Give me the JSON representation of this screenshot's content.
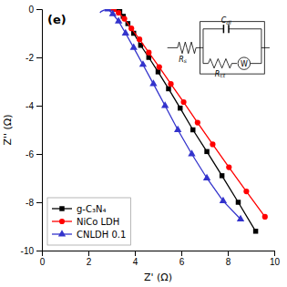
{
  "chart_data": {
    "type": "line",
    "title": "(e)",
    "x_label": "Z' (Ω)",
    "y_label": "Z'' (Ω)",
    "xlim": [
      0,
      10
    ],
    "ylim": [
      -10,
      0
    ],
    "xticks": [
      0,
      2,
      4,
      6,
      8,
      10
    ],
    "yticks": [
      0,
      -2,
      -4,
      -6,
      -8,
      -10
    ],
    "legend": "lower left",
    "series": [
      {
        "name": "g-C₃N₄",
        "color": "black",
        "marker": "square",
        "tail_x": [
          3.0,
          3.05,
          3.1,
          3.15,
          3.2
        ],
        "tail_values": [
          -0.05,
          -0.04,
          -0.03,
          -0.01,
          0.0
        ],
        "x": [
          3.2,
          3.35,
          3.5,
          3.7,
          3.95,
          4.25,
          4.6,
          5.0,
          5.45,
          5.95,
          6.5,
          7.1,
          7.75,
          8.45,
          9.2
        ],
        "values": [
          0.0,
          -0.1,
          -0.3,
          -0.6,
          -1.0,
          -1.5,
          -2.0,
          -2.6,
          -3.3,
          -4.1,
          -5.0,
          -5.9,
          -6.9,
          -8.0,
          -9.2
        ]
      },
      {
        "name": "NiCo LDH",
        "color": "red",
        "marker": "circle",
        "tail_x": [
          2.9,
          2.95,
          3.0,
          3.05,
          3.1
        ],
        "tail_values": [
          -0.05,
          -0.04,
          -0.02,
          -0.01,
          0.0
        ],
        "x": [
          3.1,
          3.3,
          3.55,
          3.85,
          4.2,
          4.6,
          5.05,
          5.55,
          6.1,
          6.7,
          7.35,
          8.05,
          8.8,
          9.6
        ],
        "values": [
          0.0,
          -0.15,
          -0.4,
          -0.8,
          -1.25,
          -1.8,
          -2.4,
          -3.1,
          -3.85,
          -4.7,
          -5.6,
          -6.55,
          -7.55,
          -8.6
        ]
      },
      {
        "name": "CNLDH 0.1",
        "color": "#3333cc",
        "marker": "triangle",
        "tail_x": [
          2.5,
          2.55,
          2.65,
          2.75,
          2.85
        ],
        "tail_values": [
          -0.15,
          -0.1,
          -0.05,
          -0.02,
          0.0
        ],
        "x": [
          2.85,
          3.05,
          3.3,
          3.6,
          3.95,
          4.35,
          4.8,
          5.3,
          5.85,
          6.45,
          7.1,
          7.8,
          8.55
        ],
        "values": [
          0.0,
          -0.2,
          -0.5,
          -1.0,
          -1.6,
          -2.3,
          -3.1,
          -4.0,
          -5.0,
          -6.0,
          -7.0,
          -7.95,
          -8.7
        ]
      }
    ],
    "annotations": [
      "Rs",
      "Cdl",
      "W",
      "Rct"
    ]
  }
}
